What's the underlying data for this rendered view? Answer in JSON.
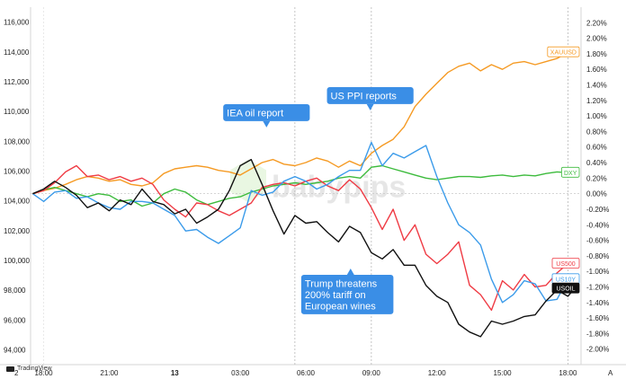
{
  "chart_data": {
    "type": "line",
    "title": "",
    "left_axis": {
      "ticks": [
        "116,000",
        "114,000",
        "112,000",
        "110,000",
        "108,000",
        "106,000",
        "104,000",
        "102,000",
        "100,000",
        "98,000",
        "96,000",
        "94,000"
      ],
      "ylim": [
        93000,
        117000
      ]
    },
    "right_axis": {
      "ticks": [
        "2.20%",
        "2.00%",
        "1.80%",
        "1.60%",
        "1.40%",
        "1.20%",
        "1.00%",
        "0.80%",
        "0.60%",
        "0.40%",
        "0.20%",
        "0.00%",
        "-0.20%",
        "-0.40%",
        "-0.60%",
        "-0.80%",
        "-1.00%",
        "-1.20%",
        "-1.40%",
        "-1.60%",
        "-1.80%",
        "-2.00%"
      ],
      "ylim": [
        -2.2,
        2.4
      ]
    },
    "x_ticks": [
      "18:00",
      "21:00",
      "13",
      "03:00",
      "06:00",
      "09:00",
      "12:00",
      "15:00",
      "18:00"
    ],
    "x_tick_hours": [
      0,
      3,
      6,
      9,
      12,
      15,
      18,
      21,
      24
    ],
    "x_range_hours": [
      -0.6,
      24.6
    ],
    "corner_left": "2",
    "corner_right": "A",
    "zero_line_pct": 0,
    "event_lines_hours": [
      11.5,
      15.0,
      24.0
    ],
    "series": [
      {
        "name": "XAUUSD",
        "color": "#f59a23",
        "label_fill": "#ffffff",
        "label_text": "#f59a23",
        "label_border": "#f59a23",
        "x": [
          -0.5,
          0,
          0.5,
          1,
          1.5,
          2,
          2.5,
          3,
          3.5,
          4,
          4.5,
          5,
          5.5,
          6,
          6.5,
          7,
          7.5,
          8,
          8.5,
          9,
          9.5,
          10,
          10.5,
          11,
          11.5,
          12,
          12.5,
          13,
          13.5,
          14,
          14.5,
          15,
          15.5,
          16,
          16.5,
          17,
          17.5,
          18,
          18.5,
          19,
          19.5,
          20,
          20.5,
          21,
          21.5,
          22,
          22.5,
          23,
          23.5,
          24
        ],
        "y": [
          0,
          0.04,
          0.07,
          0.12,
          0.18,
          0.22,
          0.2,
          0.16,
          0.18,
          0.12,
          0.1,
          0.14,
          0.26,
          0.32,
          0.34,
          0.36,
          0.34,
          0.3,
          0.28,
          0.24,
          0.32,
          0.4,
          0.44,
          0.38,
          0.36,
          0.4,
          0.46,
          0.42,
          0.34,
          0.42,
          0.36,
          0.52,
          0.62,
          0.7,
          0.86,
          1.12,
          1.28,
          1.42,
          1.56,
          1.64,
          1.68,
          1.58,
          1.66,
          1.6,
          1.68,
          1.7,
          1.66,
          1.7,
          1.74,
          1.82
        ]
      },
      {
        "name": "DXY",
        "color": "#3dbb3d",
        "label_fill": "#ffffff",
        "label_text": "#3dbb3d",
        "label_border": "#3dbb3d",
        "x": [
          -0.5,
          0,
          0.5,
          1,
          1.5,
          2,
          2.5,
          3,
          3.5,
          4,
          4.5,
          5,
          5.5,
          6,
          6.5,
          7,
          7.5,
          8,
          8.5,
          9,
          9.5,
          10,
          10.5,
          11,
          11.5,
          12,
          12.5,
          13,
          13.5,
          14,
          14.5,
          15,
          15.5,
          16,
          16.5,
          17,
          17.5,
          18,
          18.5,
          19,
          19.5,
          20,
          20.5,
          21,
          21.5,
          22,
          22.5,
          23,
          23.5,
          24
        ],
        "y": [
          0,
          0.05,
          0.08,
          0.04,
          0,
          -0.04,
          0,
          -0.02,
          -0.1,
          -0.08,
          -0.16,
          -0.12,
          0,
          0.06,
          0.02,
          -0.08,
          -0.14,
          -0.1,
          -0.06,
          -0.04,
          0.02,
          0.06,
          0.1,
          0.12,
          0.14,
          0.12,
          0.14,
          0.16,
          0.2,
          0.22,
          0.2,
          0.34,
          0.36,
          0.32,
          0.28,
          0.24,
          0.2,
          0.18,
          0.2,
          0.22,
          0.22,
          0.21,
          0.23,
          0.24,
          0.22,
          0.24,
          0.23,
          0.26,
          0.28,
          0.27
        ]
      },
      {
        "name": "US500",
        "color": "#ef3b44",
        "label_fill": "#ffffff",
        "label_text": "#ef3b44",
        "label_border": "#ef3b44",
        "x": [
          -0.5,
          0,
          0.5,
          1,
          1.5,
          2,
          2.5,
          3,
          3.5,
          4,
          4.5,
          5,
          5.5,
          6,
          6.5,
          7,
          7.5,
          8,
          8.5,
          9,
          9.5,
          10,
          10.5,
          11,
          11.5,
          12,
          12.5,
          13,
          13.5,
          14,
          14.5,
          15,
          15.5,
          16,
          16.5,
          17,
          17.5,
          18,
          18.5,
          19,
          19.5,
          20,
          20.5,
          21,
          21.5,
          22,
          22.5,
          23,
          23.5,
          24
        ],
        "y": [
          0,
          0.04,
          0.14,
          0.28,
          0.36,
          0.22,
          0.24,
          0.18,
          0.22,
          0.16,
          0.2,
          0.12,
          -0.08,
          -0.2,
          -0.3,
          -0.12,
          -0.14,
          -0.22,
          -0.28,
          -0.2,
          -0.12,
          0.08,
          0.12,
          0.14,
          0.1,
          0.16,
          0.2,
          0.1,
          0.04,
          0.18,
          0.06,
          -0.18,
          -0.46,
          -0.2,
          -0.6,
          -0.4,
          -0.78,
          -0.9,
          -0.78,
          -0.62,
          -1.18,
          -1.3,
          -1.5,
          -1.12,
          -1.24,
          -1.04,
          -1.2,
          -1.18,
          -1.02,
          -0.9
        ]
      },
      {
        "name": "US10Y",
        "color": "#3b9bea",
        "label_fill": "#ffffff",
        "label_text": "#3b9bea",
        "label_border": "#3b9bea",
        "x": [
          -0.5,
          0,
          0.5,
          1,
          1.5,
          2,
          2.5,
          3,
          3.5,
          4,
          4.5,
          5,
          5.5,
          6,
          6.5,
          7,
          7.5,
          8,
          8.5,
          9,
          9.5,
          10,
          10.5,
          11,
          11.5,
          12,
          12.5,
          13,
          13.5,
          14,
          14.5,
          15,
          15.5,
          16,
          16.5,
          17,
          17.5,
          18,
          18.5,
          19,
          19.5,
          20,
          20.5,
          21,
          21.5,
          22,
          22.5,
          23,
          23.5,
          24
        ],
        "y": [
          0,
          -0.1,
          0.02,
          0.04,
          -0.06,
          -0.04,
          -0.12,
          -0.18,
          -0.2,
          -0.1,
          -0.1,
          -0.12,
          -0.2,
          -0.28,
          -0.48,
          -0.46,
          -0.56,
          -0.64,
          -0.54,
          -0.44,
          0.04,
          -0.02,
          0.02,
          0.16,
          0.22,
          0.16,
          0.06,
          0.12,
          0.22,
          0.3,
          0.3,
          0.66,
          0.36,
          0.52,
          0.46,
          0.54,
          0.62,
          0.22,
          -0.12,
          -0.4,
          -0.5,
          -0.66,
          -1.1,
          -1.4,
          -1.3,
          -1.12,
          -1.16,
          -1.38,
          -1.36,
          -1.1
        ]
      },
      {
        "name": "USOIL",
        "color": "#111111",
        "label_fill": "#111111",
        "label_text": "#ffffff",
        "label_border": "#111111",
        "x": [
          -0.5,
          0,
          0.5,
          1,
          1.5,
          2,
          2.5,
          3,
          3.5,
          4,
          4.5,
          5,
          5.5,
          6,
          6.5,
          7,
          7.5,
          8,
          8.5,
          9,
          9.5,
          10,
          10.5,
          11,
          11.5,
          12,
          12.5,
          13,
          13.5,
          14,
          14.5,
          15,
          15.5,
          16,
          16.5,
          17,
          17.5,
          18,
          18.5,
          19,
          19.5,
          20,
          20.5,
          21,
          21.5,
          22,
          22.5,
          23,
          23.5,
          24,
          24.3
        ],
        "y": [
          0,
          0.06,
          0.16,
          0.08,
          -0.02,
          -0.18,
          -0.12,
          -0.22,
          -0.08,
          -0.14,
          0.06,
          -0.1,
          -0.14,
          -0.26,
          -0.2,
          -0.38,
          -0.3,
          -0.2,
          0.04,
          0.36,
          0.44,
          0.12,
          -0.22,
          -0.52,
          -0.28,
          -0.38,
          -0.36,
          -0.5,
          -0.62,
          -0.42,
          -0.5,
          -0.76,
          -0.84,
          -0.72,
          -0.92,
          -0.92,
          -1.18,
          -1.32,
          -1.4,
          -1.68,
          -1.78,
          -1.84,
          -1.64,
          -1.68,
          -1.64,
          -1.58,
          -1.56,
          -1.38,
          -1.24,
          -1.32,
          -1.22
        ]
      }
    ],
    "annotations": [
      {
        "text": "IEA oil report",
        "lines": [
          "IEA oil report"
        ],
        "x_hour": 10.2,
        "pointer": "down",
        "color": "#3a8ee6"
      },
      {
        "text": "US PPI reports",
        "lines": [
          "US PPI reports"
        ],
        "x_hour": 14.95,
        "pointer": "down",
        "color": "#3a8ee6"
      },
      {
        "text": "Trump threatens 200% tariff on European wines",
        "lines": [
          "Trump threatens",
          "200% tariff on",
          "European wines"
        ],
        "x_hour": 13.9,
        "pointer": "up",
        "color": "#3a8ee6"
      }
    ],
    "watermark": "babypips",
    "grid": false
  },
  "footer": {
    "brand": "TradingView"
  }
}
